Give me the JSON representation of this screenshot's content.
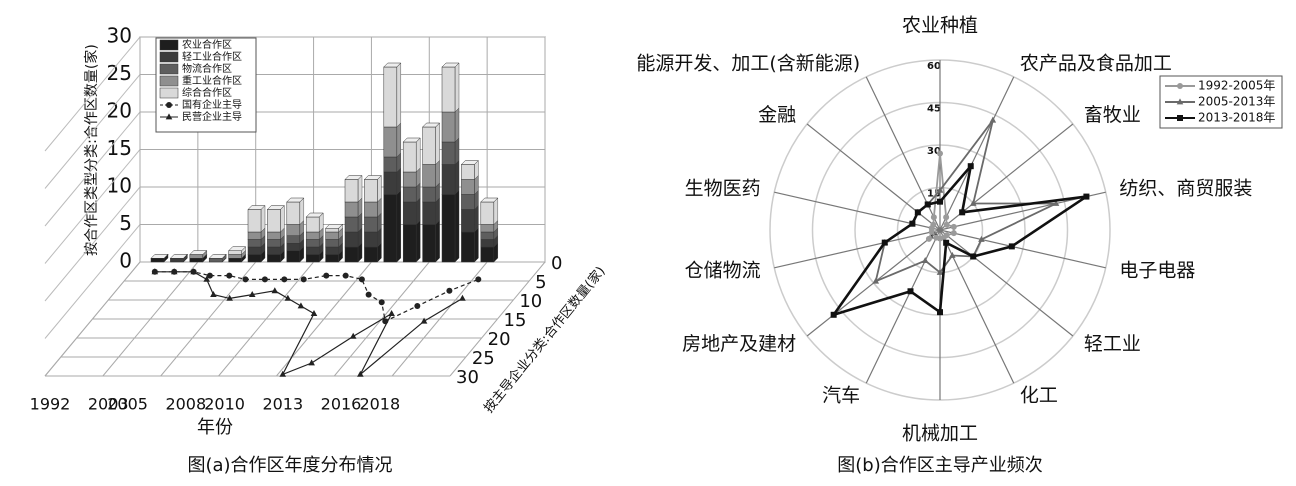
{
  "chart_data": [
    {
      "type": "bar3d",
      "caption": "图(a)合作区年度分布情况",
      "y_title": "按合作区类型分类:合作区数量(家)",
      "x_title": "年份",
      "z_title": "按主导企业分类:合作区数量(家)",
      "categories": [
        "1992",
        null,
        null,
        "2003",
        "2005",
        null,
        null,
        "2008",
        null,
        "2010",
        null,
        null,
        "2013",
        null,
        null,
        "2016",
        null,
        "2018"
      ],
      "ylim": [
        0,
        30
      ],
      "yticks": [
        0,
        5,
        10,
        15,
        20,
        25,
        30
      ],
      "zlim": [
        0,
        30
      ],
      "zticks": [
        0,
        5,
        10,
        15,
        20,
        25,
        30
      ],
      "grid": true,
      "series": [
        {
          "name": "农业合作区",
          "color": "#1e1e1e",
          "values": [
            0.5,
            0,
            0.5,
            0,
            0.5,
            1,
            1,
            1.5,
            1,
            1,
            2,
            2,
            9,
            5,
            5,
            9,
            4,
            2
          ]
        },
        {
          "name": "轻工业合作区",
          "color": "#3c3c3c",
          "values": [
            0,
            0.5,
            0,
            0,
            0,
            1,
            1,
            1,
            1,
            1,
            2,
            2,
            3,
            3,
            3,
            4,
            3,
            1
          ]
        },
        {
          "name": "物流合作区",
          "color": "#5e5e5e",
          "values": [
            0,
            0,
            0,
            0.5,
            0,
            1,
            1,
            1,
            1,
            1,
            2,
            2,
            2,
            2,
            2,
            3,
            2,
            1
          ]
        },
        {
          "name": "重工业合作区",
          "color": "#8f8f8f",
          "values": [
            0,
            0,
            0.5,
            0,
            0.5,
            1,
            1,
            1.5,
            1,
            1,
            2,
            2,
            4,
            2,
            3,
            4,
            2,
            1
          ]
        },
        {
          "name": "综合合作区",
          "color": "#d9d9d9",
          "values": [
            0,
            0,
            0,
            0,
            0.5,
            3,
            3,
            3,
            2,
            0.5,
            3,
            3,
            8,
            4,
            5,
            6,
            2,
            3
          ]
        }
      ],
      "floor_series": [
        {
          "name": "国有企业主导",
          "color": "#222222",
          "marker": "circle",
          "dashed": true,
          "values": [
            1,
            1,
            1,
            2,
            2,
            3,
            3,
            3,
            3,
            2,
            2,
            3,
            7,
            9,
            14,
            10,
            6,
            3
          ]
        },
        {
          "name": "民营企业主导",
          "color": "#222222",
          "marker": "triangle",
          "dashed": false,
          "values": [
            1,
            1,
            1,
            3,
            7,
            8,
            7,
            6,
            8,
            10,
            12,
            28,
            25,
            18,
            12,
            28,
            14,
            8
          ]
        }
      ]
    },
    {
      "type": "radar",
      "caption": "图(b)合作区主导产业频次",
      "categories": [
        "农业种植",
        "农产品及食品加工",
        "畜牧业",
        "纺织、商贸服装",
        "电子电器",
        "轻工业",
        "化工",
        "机械加工",
        "汽车",
        "房地产及建材",
        "仓储物流",
        "生物医药",
        "金融",
        "能源开发、加工(含新能源)"
      ],
      "rlim": [
        0,
        60
      ],
      "rticks": [
        0,
        15,
        30,
        45,
        60
      ],
      "series": [
        {
          "name": "1992-2005年",
          "color": "#9a9a9a",
          "marker": "circle",
          "values": [
            27,
            5,
            3,
            5,
            5,
            3,
            3,
            3,
            3,
            5,
            3,
            3,
            3,
            5
          ]
        },
        {
          "name": "2005-2013年",
          "color": "#6a6a6a",
          "marker": "triangle",
          "values": [
            14,
            43,
            15,
            42,
            15,
            15,
            10,
            15,
            12,
            29,
            20,
            10,
            10,
            10
          ]
        },
        {
          "name": "2013-2018年",
          "color": "#111111",
          "marker": "square",
          "values": [
            10,
            25,
            10,
            53,
            26,
            15,
            5,
            29,
            24,
            48,
            20,
            10,
            10,
            10
          ]
        }
      ]
    }
  ]
}
